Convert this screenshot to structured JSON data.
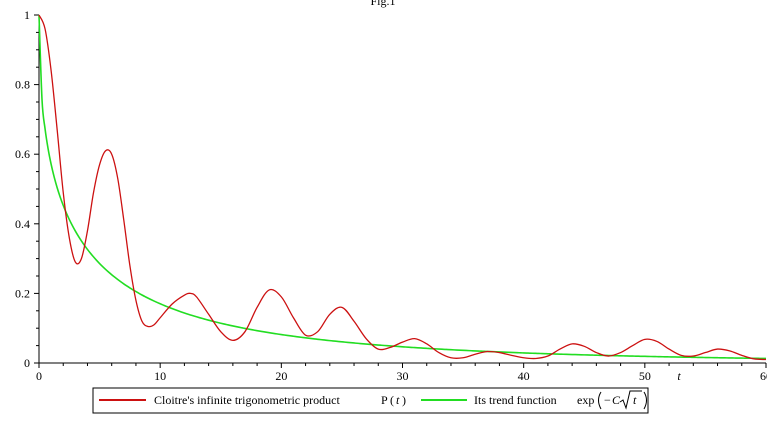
{
  "chart_data": {
    "type": "line",
    "title": "Fig.1",
    "xlabel": "t",
    "ylabel": "",
    "xlim": [
      0,
      60
    ],
    "ylim": [
      0,
      1
    ],
    "x_ticks": [
      0,
      10,
      20,
      30,
      40,
      50,
      60
    ],
    "y_ticks": [
      0,
      0.2,
      0.4,
      0.6,
      0.8,
      1
    ],
    "x_tick_labels": [
      "0",
      "10",
      "20",
      "30",
      "40",
      "50",
      "60"
    ],
    "y_tick_labels": [
      "0",
      "0.2",
      "0.4",
      "0.6",
      "0.8",
      "1"
    ],
    "grid": false,
    "legend_position": "bottom",
    "series": [
      {
        "name": "Cloitre's infinite trigonometric product P(t)",
        "legend_text": "Cloitre's infinite trigonometric product",
        "legend_math": {
          "fn": "P",
          "arg": "t"
        },
        "color": "#cc1111",
        "x": [
          0,
          0.5,
          1,
          1.5,
          2,
          2.5,
          3,
          3.5,
          4,
          4.5,
          5,
          5.5,
          6,
          6.5,
          7,
          7.5,
          8,
          8.5,
          9,
          9.5,
          10,
          11,
          12,
          12.5,
          13,
          14,
          15,
          16,
          17,
          18,
          19,
          20,
          21,
          22,
          23,
          24,
          25,
          26,
          27,
          28,
          29,
          30,
          31,
          32,
          33,
          34,
          35,
          36,
          37,
          38,
          39,
          40,
          41,
          42,
          43,
          44,
          45,
          46,
          47,
          48,
          49,
          50,
          51,
          52,
          53,
          54,
          55,
          56,
          57,
          58,
          59,
          60
        ],
        "y": [
          1.0,
          0.96,
          0.84,
          0.67,
          0.49,
          0.36,
          0.29,
          0.3,
          0.38,
          0.49,
          0.57,
          0.61,
          0.6,
          0.53,
          0.41,
          0.28,
          0.18,
          0.12,
          0.105,
          0.11,
          0.13,
          0.17,
          0.195,
          0.2,
          0.19,
          0.14,
          0.09,
          0.065,
          0.09,
          0.16,
          0.21,
          0.19,
          0.13,
          0.08,
          0.09,
          0.14,
          0.16,
          0.12,
          0.07,
          0.04,
          0.045,
          0.06,
          0.07,
          0.055,
          0.03,
          0.015,
          0.015,
          0.025,
          0.033,
          0.03,
          0.022,
          0.015,
          0.013,
          0.02,
          0.04,
          0.055,
          0.048,
          0.03,
          0.02,
          0.03,
          0.05,
          0.068,
          0.062,
          0.04,
          0.022,
          0.02,
          0.03,
          0.04,
          0.035,
          0.022,
          0.012,
          0.01
        ]
      },
      {
        "name": "Its trend function exp(-C√t)",
        "legend_text": "Its trend function",
        "legend_math": {
          "fn": "exp",
          "neg": "−",
          "coef": "C",
          "arg": "t"
        },
        "color": "#22dd22",
        "model": {
          "formula": "exp(-C*sqrt(t))",
          "C": 0.56
        }
      }
    ]
  }
}
